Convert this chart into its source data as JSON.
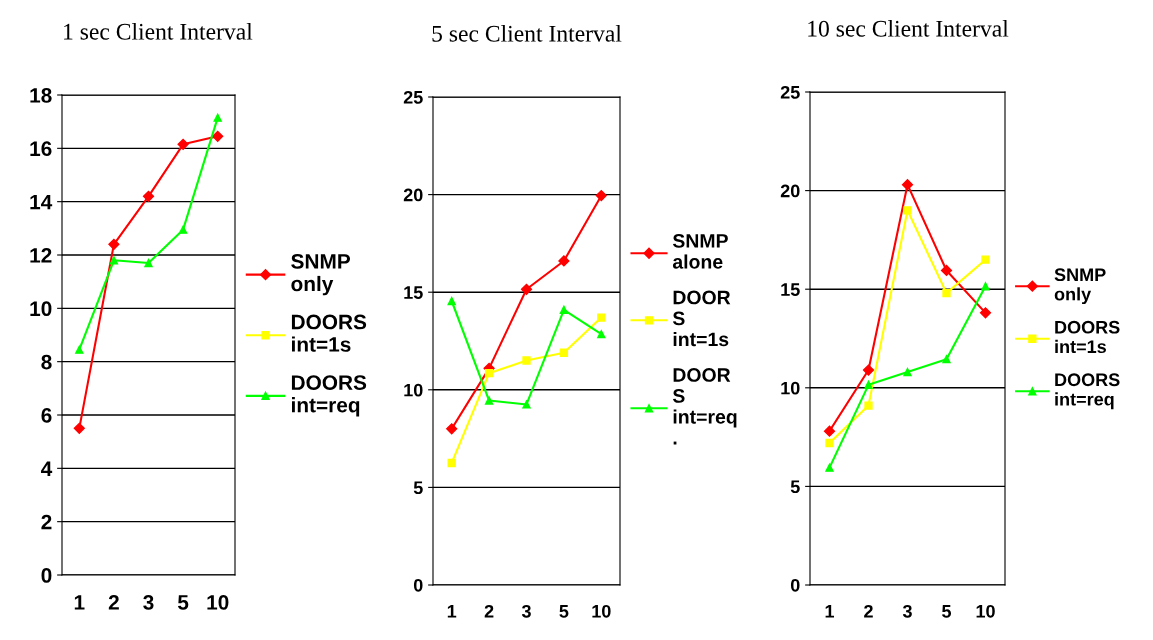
{
  "chart_data": [
    {
      "type": "line",
      "title": "1 sec Client Interval",
      "categories": [
        "1",
        "2",
        "3",
        "5",
        "10"
      ],
      "ylim": [
        0,
        18
      ],
      "yticks": [
        0,
        2,
        4,
        6,
        8,
        10,
        12,
        14,
        16,
        18
      ],
      "grid": "y",
      "legend": "right",
      "series": [
        {
          "name": "SNMP\nonly",
          "color": "#ff0000",
          "marker": "diamond",
          "values": [
            5.5,
            12.4,
            14.2,
            16.15,
            16.45
          ]
        },
        {
          "name": "DOORS\nint=1s",
          "color": "#ffff00",
          "marker": "square",
          "values": [
            null,
            null,
            null,
            null,
            null
          ]
        },
        {
          "name": "DOORS\nint=req",
          "color": "#00ff00",
          "marker": "triangle",
          "values": [
            8.45,
            11.8,
            11.7,
            12.95,
            17.15
          ]
        }
      ]
    },
    {
      "type": "line",
      "title": "5 sec Client Interval",
      "categories": [
        "1",
        "2",
        "3",
        "5",
        "10"
      ],
      "ylim": [
        0,
        25
      ],
      "yticks": [
        0,
        5,
        10,
        15,
        20,
        25
      ],
      "grid": "y",
      "legend": "right",
      "series": [
        {
          "name": "SNMP\nalone",
          "color": "#ff0000",
          "marker": "diamond",
          "values": [
            8.0,
            11.1,
            15.15,
            16.6,
            19.95
          ]
        },
        {
          "name": "DOOR\nS\nint=1s",
          "color": "#ffff00",
          "marker": "square",
          "values": [
            6.25,
            10.85,
            11.5,
            11.9,
            13.7
          ]
        },
        {
          "name": "DOOR\nS\nint=req\n.",
          "color": "#00ff00",
          "marker": "triangle",
          "values": [
            14.55,
            9.45,
            9.25,
            14.1,
            12.85
          ]
        }
      ]
    },
    {
      "type": "line",
      "title": "10 sec Client Interval",
      "categories": [
        "1",
        "2",
        "3",
        "5",
        "10"
      ],
      "ylim": [
        0,
        25
      ],
      "yticks": [
        0,
        5,
        10,
        15,
        20,
        25
      ],
      "grid": "y",
      "legend": "right",
      "series": [
        {
          "name": "SNMP\nonly",
          "color": "#ff0000",
          "marker": "diamond",
          "values": [
            7.8,
            10.9,
            20.3,
            15.95,
            13.8
          ]
        },
        {
          "name": "DOORS\nint=1s",
          "color": "#ffff00",
          "marker": "square",
          "values": [
            7.2,
            9.1,
            19.0,
            14.8,
            16.5
          ]
        },
        {
          "name": "DOORS\nint=req",
          "color": "#00ff00",
          "marker": "triangle",
          "values": [
            5.95,
            10.15,
            10.8,
            11.45,
            15.15
          ]
        }
      ]
    }
  ]
}
